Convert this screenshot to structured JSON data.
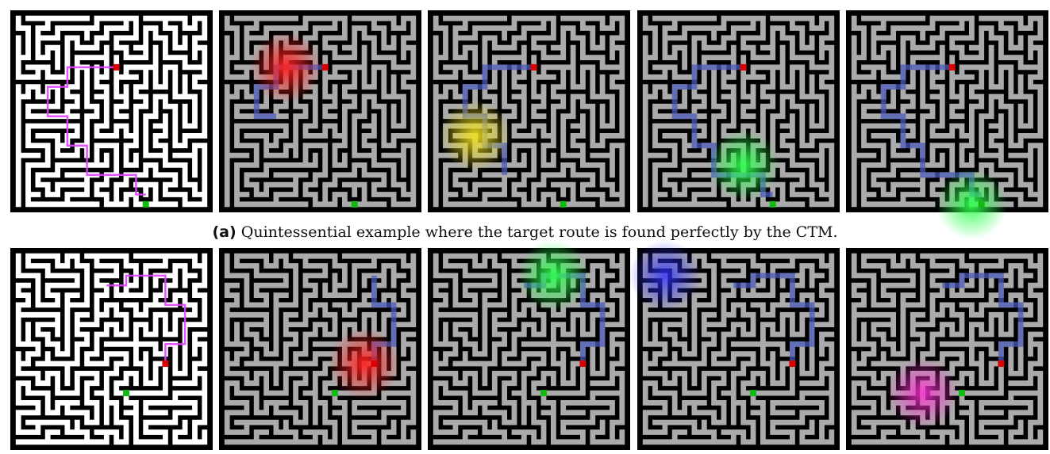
{
  "caption": {
    "label": "(a)",
    "text": "Quintessential example where the target route is found perfectly by the CTM."
  }
}
